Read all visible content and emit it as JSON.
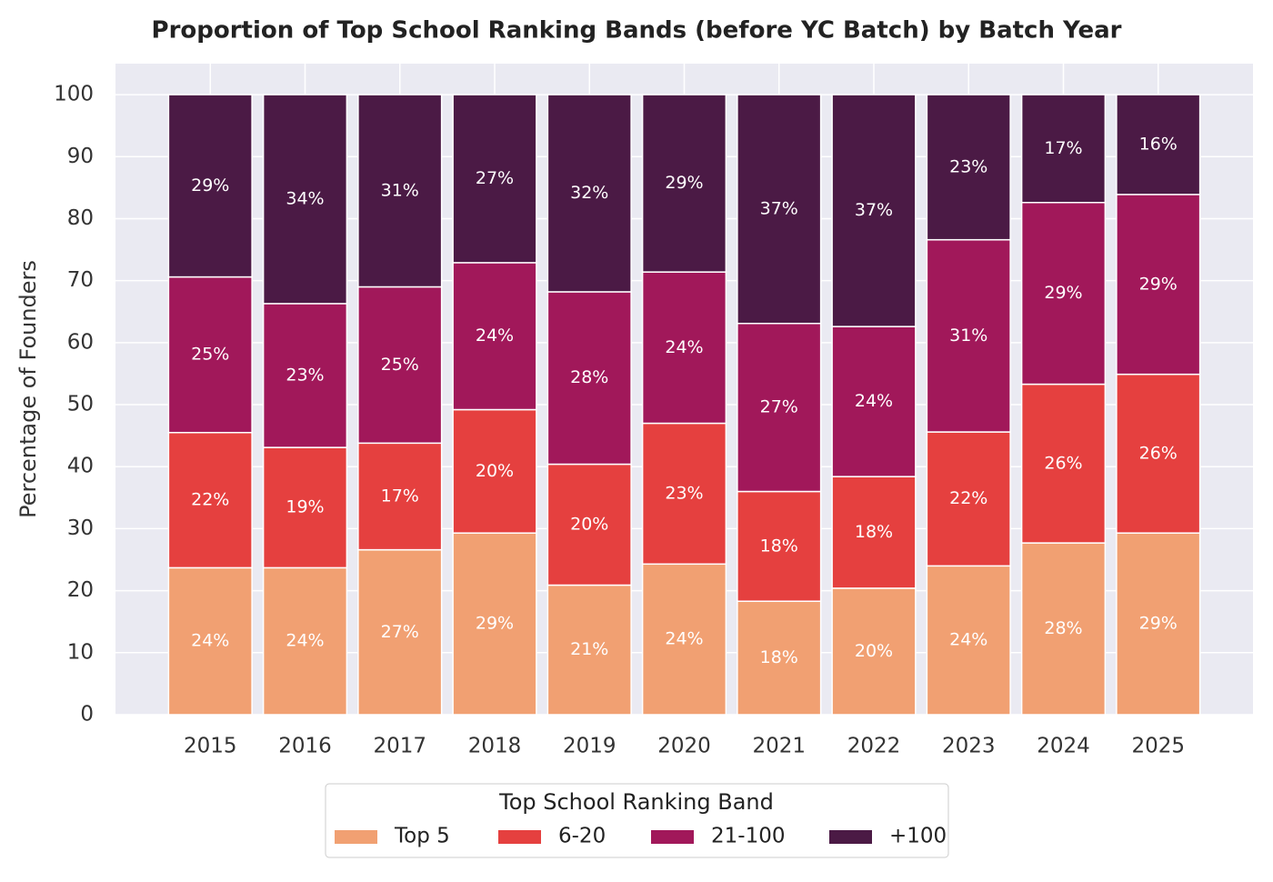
{
  "chart_data": {
    "type": "bar",
    "stacked": true,
    "title": "Proportion of Top School Ranking Bands (before YC Batch) by Batch Year",
    "y_label": "Percentage of Founders",
    "categories": [
      "2015",
      "2016",
      "2017",
      "2018",
      "2019",
      "2020",
      "2021",
      "2022",
      "2023",
      "2024",
      "2025"
    ],
    "series": [
      {
        "name": "Top 5",
        "color": "#f1a072",
        "values": [
          23.7,
          23.7,
          26.6,
          29.3,
          20.9,
          24.3,
          18.3,
          20.4,
          24.0,
          27.7,
          29.3
        ],
        "value_labels": [
          "24%",
          "24%",
          "27%",
          "29%",
          "21%",
          "24%",
          "18%",
          "20%",
          "24%",
          "28%",
          "29%"
        ]
      },
      {
        "name": "6-20",
        "color": "#e5403f",
        "values": [
          21.8,
          19.4,
          17.2,
          19.9,
          19.5,
          22.7,
          17.7,
          18.0,
          21.6,
          25.6,
          25.6
        ],
        "value_labels": [
          "22%",
          "19%",
          "17%",
          "20%",
          "20%",
          "23%",
          "18%",
          "18%",
          "22%",
          "26%",
          "26%"
        ]
      },
      {
        "name": "21-100",
        "color": "#a1185a",
        "values": [
          25.1,
          23.2,
          25.2,
          23.7,
          27.8,
          24.4,
          27.1,
          24.2,
          31.0,
          29.3,
          29.0
        ],
        "value_labels": [
          "25%",
          "23%",
          "25%",
          "24%",
          "28%",
          "24%",
          "27%",
          "24%",
          "31%",
          "29%",
          "29%"
        ]
      },
      {
        "name": "+100",
        "color": "#4b1a45",
        "values": [
          29.4,
          33.7,
          31.0,
          27.1,
          31.8,
          28.6,
          36.9,
          37.4,
          23.4,
          17.4,
          16.1
        ],
        "value_labels": [
          "29%",
          "34%",
          "31%",
          "27%",
          "32%",
          "29%",
          "37%",
          "37%",
          "23%",
          "17%",
          "16%"
        ]
      }
    ],
    "ylim": [
      0,
      105
    ],
    "yticks": [
      0,
      10,
      20,
      30,
      40,
      50,
      60,
      70,
      80,
      90,
      100
    ],
    "grid": true,
    "legend_title": "Top School Ranking Band",
    "legend_position": "below"
  }
}
